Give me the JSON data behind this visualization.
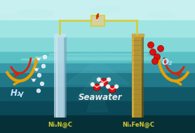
{
  "background_sky_top": "#a8e8e8",
  "background_sky_bottom": "#70d8d0",
  "water_surface_color": "#40b0b8",
  "water_deep_color": "#083848",
  "water_mid_color": "#186878",
  "left_electrode_color": "#b0d8e8",
  "left_electrode_shadow": "#88b8c8",
  "right_electrode_color": "#b89020",
  "right_electrode_shadow": "#806010",
  "wire_color": "#d8cc30",
  "wire_box_color": "#d0c020",
  "bolt_color": "#cc3300",
  "h2_text": "H₂",
  "o2_text": "O₂",
  "seawater_text": "Seawater",
  "left_label": "NiₓN@C",
  "right_label": "NiₓFeN@C",
  "label_color": "#d4c830",
  "seawater_color": "#e8e8e8",
  "h2_color": "#c8e0ff",
  "o2_color": "#c8e0ff",
  "arrow_outer_color": "#e8a000",
  "arrow_inner_color": "#dd2200",
  "mol_red": "#dd1010",
  "mol_white": "#f0f0f0",
  "bubble_color": "#c8d8f0",
  "cloud_color": "#c0eeee"
}
